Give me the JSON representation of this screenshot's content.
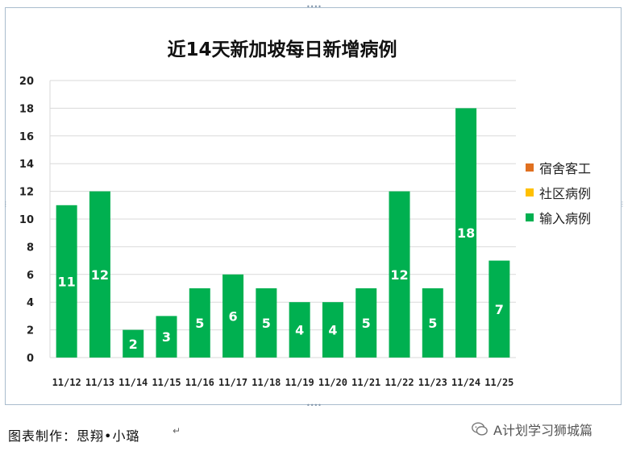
{
  "chart_data": {
    "type": "bar",
    "title": "近14天新加坡每日新增病例",
    "categories": [
      "11/12",
      "11/13",
      "11/14",
      "11/15",
      "11/16",
      "11/17",
      "11/18",
      "11/19",
      "11/20",
      "11/21",
      "11/22",
      "11/23",
      "11/24",
      "11/25"
    ],
    "series": [
      {
        "name": "宿舍客工",
        "color": "#e07020",
        "values": [
          0,
          0,
          0,
          0,
          0,
          0,
          0,
          0,
          0,
          0,
          0,
          0,
          0,
          0
        ]
      },
      {
        "name": "社区病例",
        "color": "#ffc000",
        "values": [
          0,
          0,
          0,
          0,
          0,
          0,
          0,
          0,
          0,
          0,
          0,
          0,
          0,
          0
        ]
      },
      {
        "name": "输入病例",
        "color": "#00b050",
        "values": [
          11,
          12,
          2,
          3,
          5,
          6,
          5,
          4,
          4,
          5,
          12,
          5,
          18,
          7
        ]
      }
    ],
    "y_ticks": [
      "0",
      "2",
      "4",
      "6",
      "8",
      "10",
      "12",
      "14",
      "16",
      "18",
      "20"
    ],
    "ylim": [
      0,
      20
    ],
    "grid": true,
    "legend_position": "right",
    "data_labels": true,
    "bar_color": "#00b050",
    "label_color": "#ffffff"
  },
  "footer": {
    "credit": "图表制作：思翔•小璐"
  },
  "watermark": {
    "text": "A计划学习狮城篇",
    "icon": "wechat-icon"
  }
}
